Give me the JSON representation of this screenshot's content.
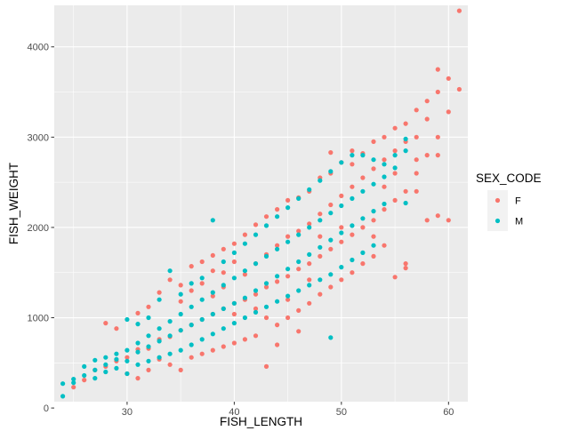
{
  "chart_data": {
    "type": "scatter",
    "title": "",
    "xlabel": "FISH_LENGTH",
    "ylabel": "FISH_WEIGHT",
    "xlim": [
      23.2,
      61.8
    ],
    "ylim": [
      70,
      4460
    ],
    "x_ticks": [
      30,
      40,
      50,
      60
    ],
    "y_ticks": [
      0,
      1000,
      2000,
      3000,
      4000
    ],
    "grid": true,
    "legend": {
      "title": "SEX_CODE",
      "placement": "right",
      "entries": [
        "F",
        "M"
      ]
    },
    "series": [
      {
        "name": "F",
        "color": "#F8766D",
        "points": [
          [
            25,
            230
          ],
          [
            26,
            310
          ],
          [
            27,
            420
          ],
          [
            28,
            460
          ],
          [
            28,
            940
          ],
          [
            29,
            520
          ],
          [
            29,
            880
          ],
          [
            30,
            560
          ],
          [
            30,
            380
          ],
          [
            31,
            650
          ],
          [
            31,
            1050
          ],
          [
            31,
            330
          ],
          [
            32,
            660
          ],
          [
            32,
            1120
          ],
          [
            32,
            420
          ],
          [
            33,
            760
          ],
          [
            33,
            1280
          ],
          [
            33,
            540
          ],
          [
            34,
            790
          ],
          [
            34,
            1420
          ],
          [
            34,
            480
          ],
          [
            35,
            860
          ],
          [
            35,
            1360
          ],
          [
            35,
            1180
          ],
          [
            35,
            420
          ],
          [
            36,
            920
          ],
          [
            36,
            1570
          ],
          [
            36,
            560
          ],
          [
            36,
            1300
          ],
          [
            37,
            980
          ],
          [
            37,
            1620
          ],
          [
            37,
            600
          ],
          [
            37,
            1380
          ],
          [
            38,
            1040
          ],
          [
            38,
            1690
          ],
          [
            38,
            640
          ],
          [
            38,
            1240
          ],
          [
            38,
            1520
          ],
          [
            39,
            1100
          ],
          [
            39,
            1760
          ],
          [
            39,
            680
          ],
          [
            39,
            1340
          ],
          [
            39,
            1500
          ],
          [
            40,
            1160
          ],
          [
            40,
            1820
          ],
          [
            40,
            720
          ],
          [
            40,
            1040
          ],
          [
            40,
            1620
          ],
          [
            41,
            1200
          ],
          [
            41,
            1920
          ],
          [
            41,
            760
          ],
          [
            41,
            1480
          ],
          [
            42,
            1260
          ],
          [
            42,
            2030
          ],
          [
            42,
            800
          ],
          [
            42,
            1600
          ],
          [
            42,
            1100
          ],
          [
            43,
            1340
          ],
          [
            43,
            2120
          ],
          [
            43,
            460
          ],
          [
            43,
            1700
          ],
          [
            43,
            1000
          ],
          [
            44,
            1400
          ],
          [
            44,
            2200
          ],
          [
            44,
            920
          ],
          [
            44,
            1800
          ],
          [
            44,
            700
          ],
          [
            45,
            1460
          ],
          [
            45,
            2300
          ],
          [
            45,
            1000
          ],
          [
            45,
            1900
          ],
          [
            45,
            1200
          ],
          [
            46,
            1540
          ],
          [
            46,
            2330
          ],
          [
            46,
            1080
          ],
          [
            46,
            1960
          ],
          [
            46,
            850
          ],
          [
            47,
            1600
          ],
          [
            47,
            2400
          ],
          [
            47,
            1160
          ],
          [
            47,
            2040
          ],
          [
            47,
            1420
          ],
          [
            48,
            1680
          ],
          [
            48,
            2550
          ],
          [
            48,
            1260
          ],
          [
            48,
            2150
          ],
          [
            48,
            1900
          ],
          [
            49,
            1760
          ],
          [
            49,
            2830
          ],
          [
            49,
            1340
          ],
          [
            49,
            2250
          ],
          [
            49,
            2600
          ],
          [
            50,
            1840
          ],
          [
            50,
            2720
          ],
          [
            50,
            1420
          ],
          [
            50,
            2350
          ],
          [
            50,
            2000
          ],
          [
            51,
            1920
          ],
          [
            51,
            2850
          ],
          [
            51,
            1500
          ],
          [
            51,
            2450
          ],
          [
            51,
            2700
          ],
          [
            52,
            2000
          ],
          [
            52,
            2820
          ],
          [
            52,
            1600
          ],
          [
            52,
            2550
          ],
          [
            53,
            2080
          ],
          [
            53,
            2950
          ],
          [
            53,
            1680
          ],
          [
            53,
            2650
          ],
          [
            53,
            1900
          ],
          [
            54,
            2200
          ],
          [
            54,
            3000
          ],
          [
            54,
            1800
          ],
          [
            54,
            2750
          ],
          [
            54,
            2450
          ],
          [
            55,
            2300
          ],
          [
            55,
            3100
          ],
          [
            55,
            1450
          ],
          [
            55,
            2850
          ],
          [
            55,
            2600
          ],
          [
            56,
            2400
          ],
          [
            56,
            3150
          ],
          [
            56,
            1550
          ],
          [
            56,
            2950
          ],
          [
            56,
            1600
          ],
          [
            57,
            2600
          ],
          [
            57,
            3300
          ],
          [
            57,
            2400
          ],
          [
            57,
            3000
          ],
          [
            57,
            2750
          ],
          [
            58,
            2800
          ],
          [
            58,
            3400
          ],
          [
            58,
            3200
          ],
          [
            58,
            2080
          ],
          [
            59,
            3000
          ],
          [
            59,
            3500
          ],
          [
            59,
            2130
          ],
          [
            59,
            2800
          ],
          [
            59,
            3750
          ],
          [
            60,
            3280
          ],
          [
            60,
            2080
          ],
          [
            60,
            3650
          ],
          [
            61,
            3530
          ],
          [
            61,
            4400
          ]
        ]
      },
      {
        "name": "M",
        "color": "#00BFC4",
        "points": [
          [
            24,
            130
          ],
          [
            24,
            270
          ],
          [
            25,
            280
          ],
          [
            25,
            320
          ],
          [
            26,
            360
          ],
          [
            26,
            460
          ],
          [
            27,
            330
          ],
          [
            27,
            420
          ],
          [
            27,
            530
          ],
          [
            28,
            400
          ],
          [
            28,
            480
          ],
          [
            28,
            560
          ],
          [
            29,
            440
          ],
          [
            29,
            540
          ],
          [
            29,
            600
          ],
          [
            30,
            380
          ],
          [
            30,
            520
          ],
          [
            30,
            640
          ],
          [
            30,
            980
          ],
          [
            31,
            480
          ],
          [
            31,
            620
          ],
          [
            31,
            720
          ],
          [
            31,
            930
          ],
          [
            32,
            520
          ],
          [
            32,
            680
          ],
          [
            32,
            800
          ],
          [
            32,
            1000
          ],
          [
            33,
            560
          ],
          [
            33,
            740
          ],
          [
            33,
            880
          ],
          [
            33,
            1200
          ],
          [
            34,
            600
          ],
          [
            34,
            800
          ],
          [
            34,
            960
          ],
          [
            34,
            1520
          ],
          [
            35,
            640
          ],
          [
            35,
            860
          ],
          [
            35,
            1040
          ],
          [
            35,
            1260
          ],
          [
            36,
            700
          ],
          [
            36,
            920
          ],
          [
            36,
            1120
          ],
          [
            36,
            1380
          ],
          [
            37,
            760
          ],
          [
            37,
            980
          ],
          [
            37,
            1200
          ],
          [
            37,
            1440
          ],
          [
            38,
            820
          ],
          [
            38,
            1040
          ],
          [
            38,
            1280
          ],
          [
            38,
            2080
          ],
          [
            39,
            880
          ],
          [
            39,
            1100
          ],
          [
            39,
            1360
          ],
          [
            39,
            1620
          ],
          [
            40,
            940
          ],
          [
            40,
            1160
          ],
          [
            40,
            1440
          ],
          [
            40,
            1720
          ],
          [
            41,
            1000
          ],
          [
            41,
            1220
          ],
          [
            41,
            1520
          ],
          [
            41,
            1820
          ],
          [
            42,
            1060
          ],
          [
            42,
            1300
          ],
          [
            42,
            1600
          ],
          [
            42,
            1920
          ],
          [
            43,
            1120
          ],
          [
            43,
            1380
          ],
          [
            43,
            1680
          ],
          [
            43,
            2020
          ],
          [
            44,
            1180
          ],
          [
            44,
            1460
          ],
          [
            44,
            1760
          ],
          [
            44,
            2120
          ],
          [
            45,
            1240
          ],
          [
            45,
            1540
          ],
          [
            45,
            1840
          ],
          [
            45,
            2220
          ],
          [
            46,
            1300
          ],
          [
            46,
            1620
          ],
          [
            46,
            1920
          ],
          [
            46,
            2320
          ],
          [
            47,
            1360
          ],
          [
            47,
            1700
          ],
          [
            47,
            2000
          ],
          [
            47,
            2420
          ],
          [
            48,
            1420
          ],
          [
            48,
            1780
          ],
          [
            48,
            2080
          ],
          [
            48,
            2520
          ],
          [
            49,
            1480
          ],
          [
            49,
            1860
          ],
          [
            49,
            2160
          ],
          [
            49,
            2620
          ],
          [
            49,
            780
          ],
          [
            50,
            1560
          ],
          [
            50,
            1940
          ],
          [
            50,
            2240
          ],
          [
            50,
            2720
          ],
          [
            51,
            1640
          ],
          [
            51,
            2020
          ],
          [
            51,
            2320
          ],
          [
            51,
            2800
          ],
          [
            52,
            1720
          ],
          [
            52,
            2100
          ],
          [
            52,
            2400
          ],
          [
            52,
            2800
          ],
          [
            53,
            1800
          ],
          [
            53,
            2180
          ],
          [
            53,
            2480
          ],
          [
            53,
            2750
          ],
          [
            54,
            2260
          ],
          [
            54,
            2560
          ],
          [
            54,
            2700
          ],
          [
            55,
            2660
          ],
          [
            55,
            2800
          ],
          [
            56,
            2270
          ],
          [
            56,
            2850
          ],
          [
            56,
            2980
          ]
        ]
      }
    ]
  }
}
